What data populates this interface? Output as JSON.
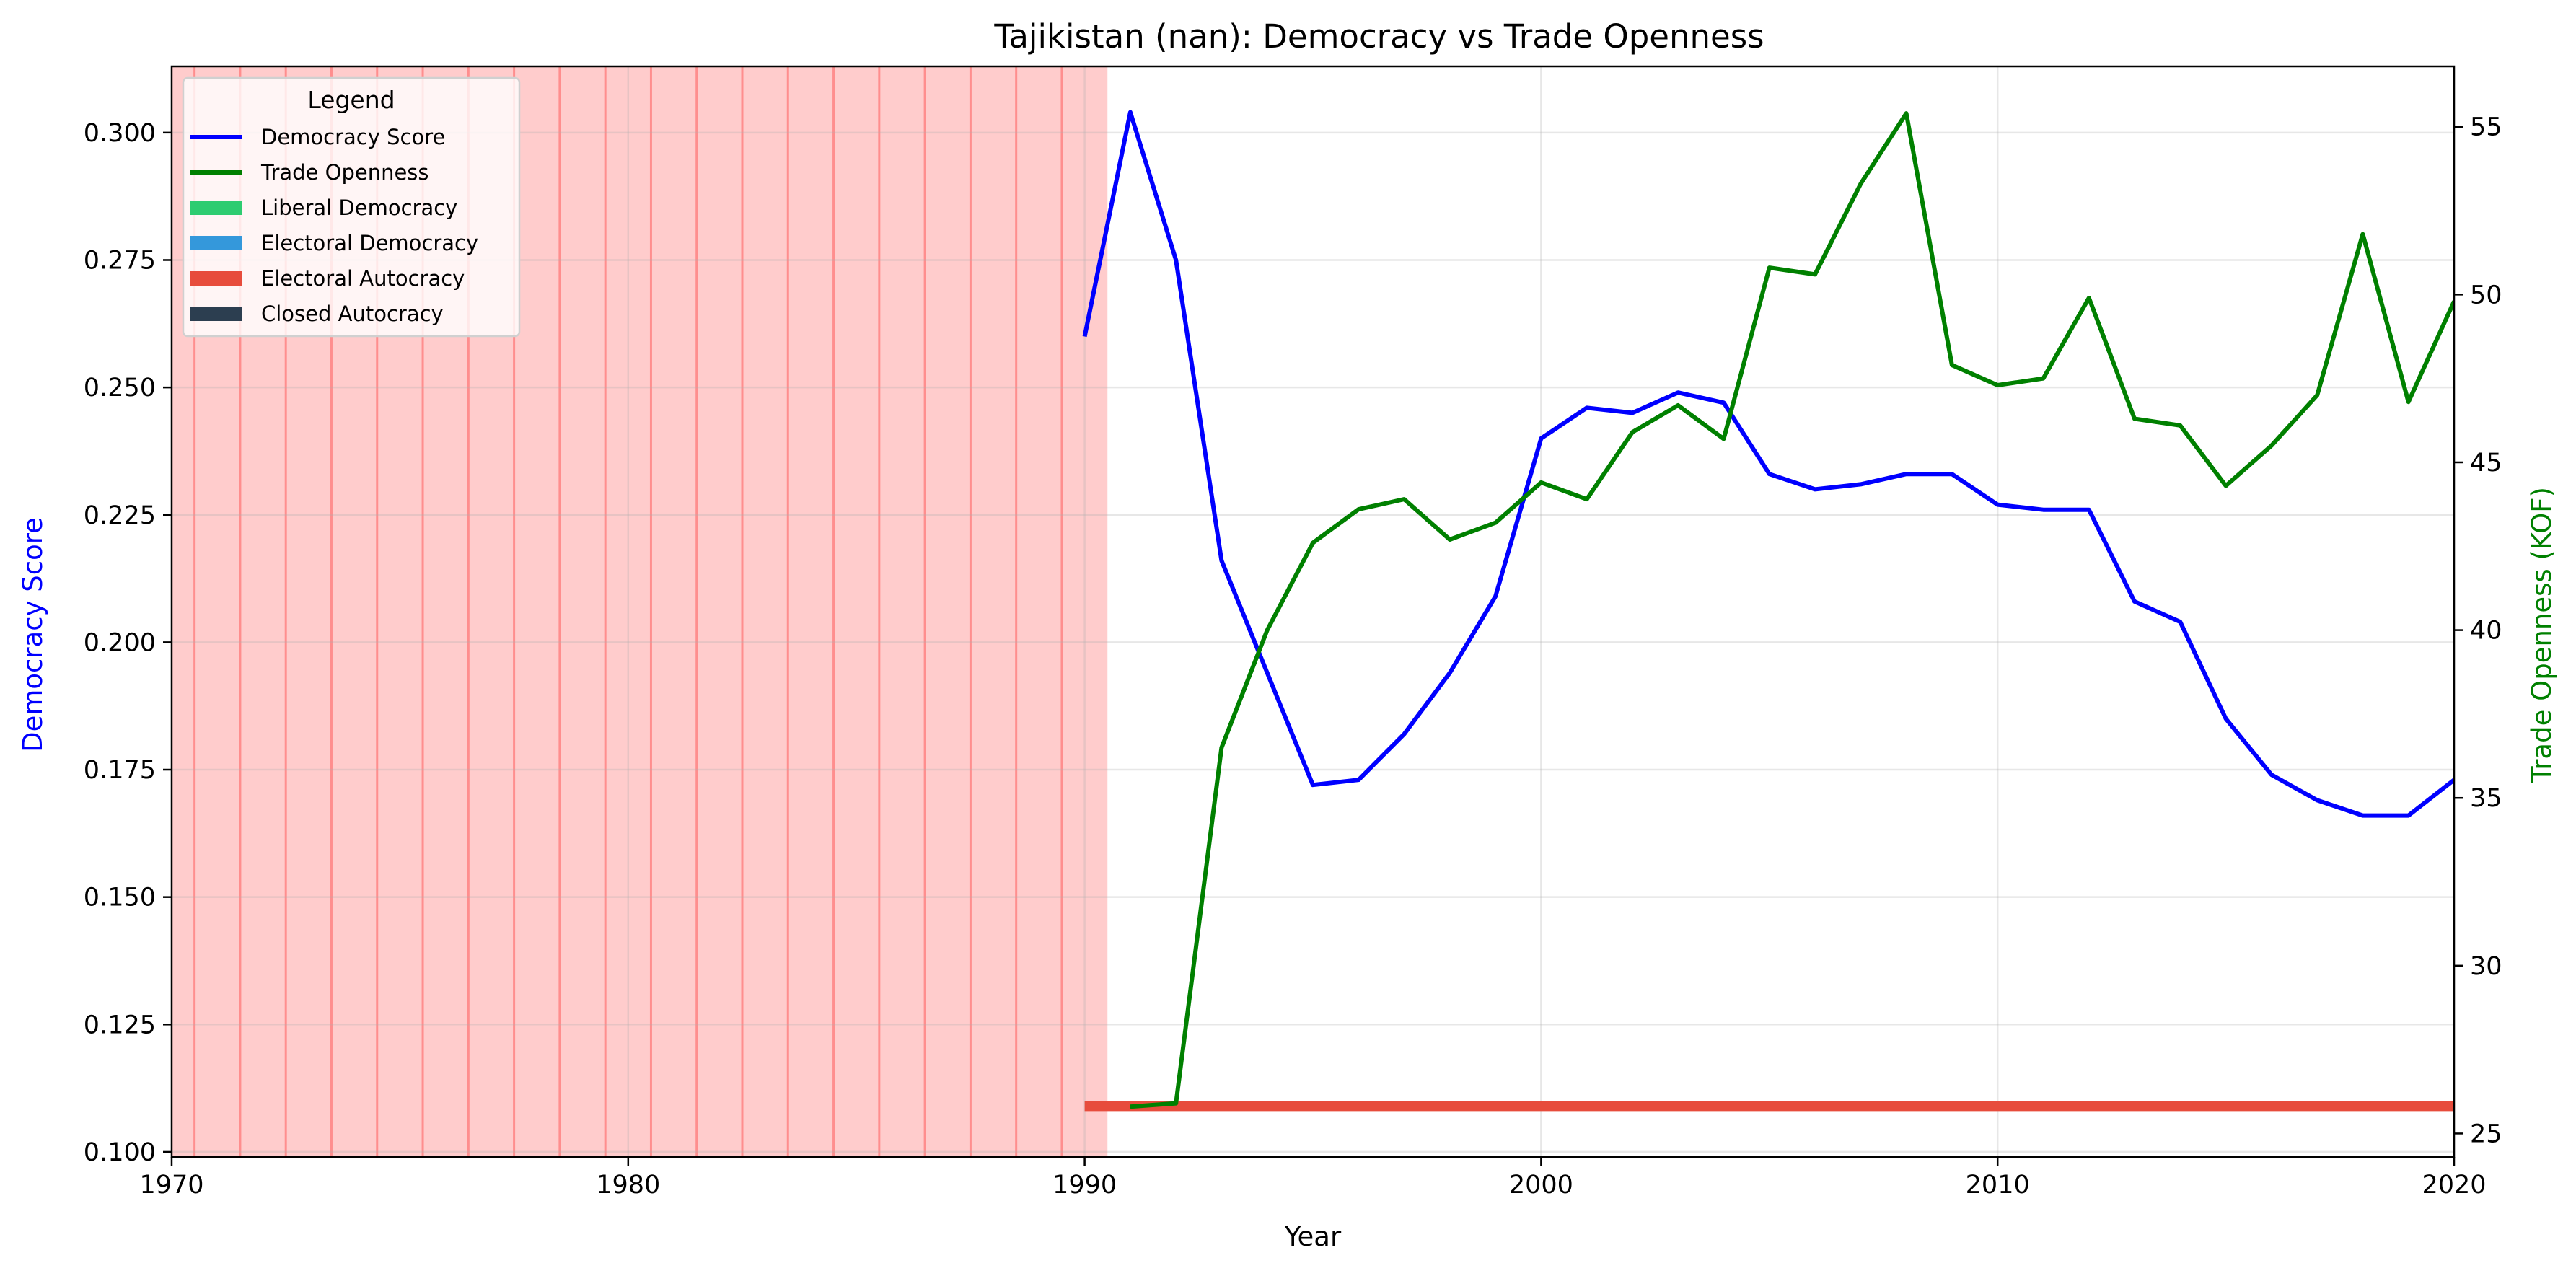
{
  "chart_data": {
    "type": "line",
    "title": "Tajikistan (nan): Democracy vs Trade Openness",
    "xlabel": "Year",
    "ylabel_left": "Democracy Score",
    "ylabel_right": "Trade Openness (KOF)",
    "xlim": [
      1970,
      2020
    ],
    "ylim_left": [
      0.099,
      0.313
    ],
    "ylim_right": [
      24.3,
      56.8
    ],
    "x_ticks": [
      1970,
      1980,
      1990,
      2000,
      2010,
      2020
    ],
    "y_left_ticks": [
      0.1,
      0.125,
      0.15,
      0.175,
      0.2,
      0.225,
      0.25,
      0.275,
      0.3
    ],
    "y_right_ticks": [
      25,
      30,
      35,
      40,
      45,
      50,
      55
    ],
    "grid": true,
    "legend_position": "top-left",
    "legend_title": "Legend",
    "legend_entries": [
      {
        "label": "Democracy Score",
        "kind": "line",
        "color": "#0000ff"
      },
      {
        "label": "Trade Openness",
        "kind": "line",
        "color": "#008000"
      },
      {
        "label": "Liberal Democracy",
        "kind": "patch",
        "color": "#2ecc71"
      },
      {
        "label": "Electoral Democracy",
        "kind": "patch",
        "color": "#3498db"
      },
      {
        "label": "Electoral Autocracy",
        "kind": "patch",
        "color": "#e74c3c"
      },
      {
        "label": "Closed Autocracy",
        "kind": "patch",
        "color": "#2c3e50"
      }
    ],
    "shaded_region": {
      "x_start": 1970,
      "x_end": 1990.5,
      "color": "#ff0000",
      "vlines_at_year_plus": 0.5
    },
    "regime_bar": {
      "x_start": 1990,
      "x_end": 2020,
      "y_value": 0.109,
      "color": "#e74c3c"
    },
    "series": [
      {
        "name": "Democracy Score",
        "axis": "left",
        "color": "#0000ff",
        "x": [
          1990,
          1991,
          1992,
          1993,
          1994,
          1995,
          1996,
          1997,
          1998,
          1999,
          2000,
          2001,
          2002,
          2003,
          2004,
          2005,
          2006,
          2007,
          2008,
          2009,
          2010,
          2011,
          2012,
          2013,
          2014,
          2015,
          2016,
          2017,
          2018,
          2019,
          2020
        ],
        "values": [
          0.26,
          0.304,
          0.275,
          0.216,
          0.194,
          0.172,
          0.173,
          0.182,
          0.194,
          0.209,
          0.24,
          0.246,
          0.245,
          0.249,
          0.247,
          0.233,
          0.23,
          0.231,
          0.233,
          0.233,
          0.227,
          0.226,
          0.226,
          0.208,
          0.204,
          0.185,
          0.174,
          0.169,
          0.166,
          0.166,
          0.173
        ]
      },
      {
        "name": "Trade Openness",
        "axis": "right",
        "color": "#008000",
        "x": [
          1991,
          1992,
          1993,
          1994,
          1995,
          1996,
          1997,
          1998,
          1999,
          2000,
          2001,
          2002,
          2003,
          2004,
          2005,
          2006,
          2007,
          2008,
          2009,
          2010,
          2011,
          2012,
          2013,
          2014,
          2015,
          2016,
          2017,
          2018,
          2019,
          2020
        ],
        "values": [
          25.8,
          25.9,
          36.5,
          40.0,
          42.6,
          43.6,
          43.9,
          42.7,
          43.2,
          44.4,
          43.9,
          45.9,
          46.7,
          45.7,
          50.8,
          50.6,
          53.3,
          55.4,
          47.9,
          47.3,
          47.5,
          49.9,
          46.3,
          46.1,
          44.3,
          45.5,
          47.0,
          51.8,
          46.8,
          49.8
        ]
      }
    ]
  }
}
